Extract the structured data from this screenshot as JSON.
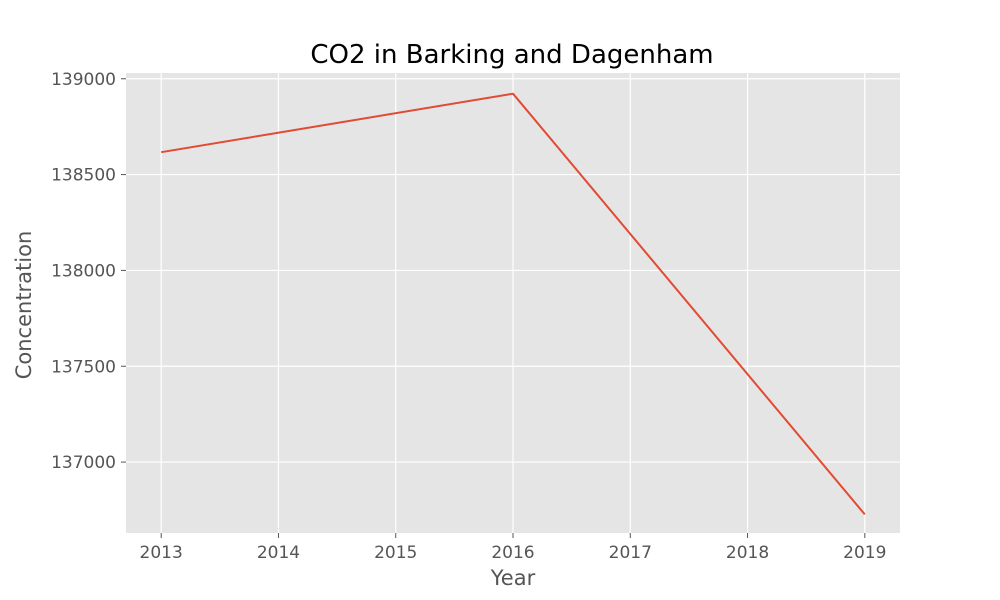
{
  "chart_data": {
    "type": "line",
    "title": "CO2 in Barking and Dagenham",
    "xlabel": "Year",
    "ylabel": "Concentration",
    "x": [
      2013,
      2014,
      2015,
      2016,
      2017,
      2018,
      2019
    ],
    "series": [
      {
        "name": "CO2",
        "x": [
          2013,
          2016,
          2019
        ],
        "values": [
          138617,
          138922,
          136727
        ]
      }
    ],
    "xlim": [
      2012.7,
      2019.3
    ],
    "ylim": [
      136630,
      139030
    ],
    "yticks": [
      137000,
      137500,
      138000,
      138500,
      139000
    ],
    "xticks": [
      2013,
      2014,
      2015,
      2016,
      2017,
      2018,
      2019
    ],
    "grid": true,
    "colors": {
      "line": "#e24a33",
      "plot_bg": "#e5e5e5",
      "grid": "#ffffff",
      "tick": "#555555"
    }
  }
}
